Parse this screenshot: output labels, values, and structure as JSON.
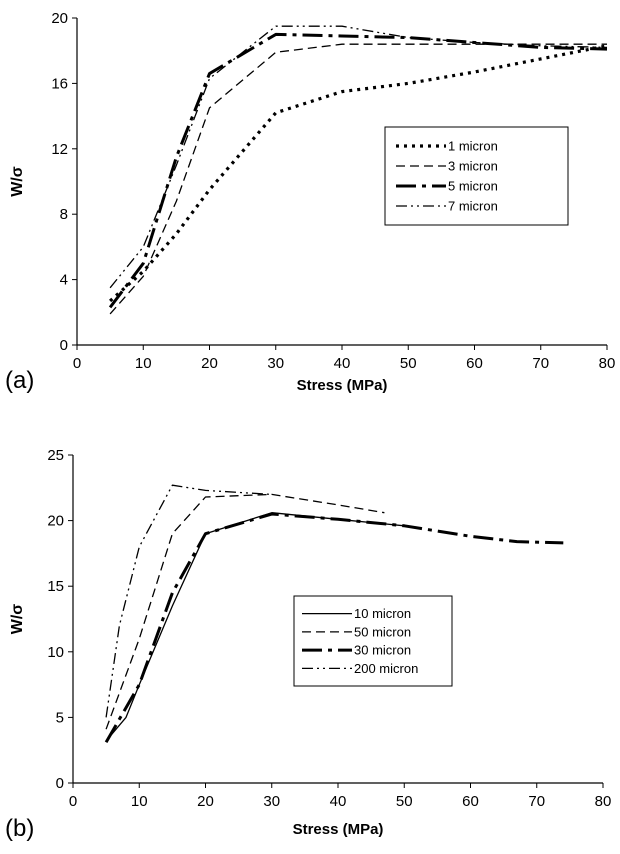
{
  "chart_data": [
    {
      "panel": "(a)",
      "type": "line",
      "xlabel": "Stress (MPa)",
      "ylabel": "W/σ",
      "xlim": [
        0,
        80
      ],
      "ylim": [
        0,
        20
      ],
      "xticks": [
        0,
        10,
        20,
        30,
        40,
        50,
        60,
        70,
        80
      ],
      "yticks": [
        0,
        4,
        8,
        12,
        16,
        20
      ],
      "grid": false,
      "legend_position": "right-middle",
      "series": [
        {
          "name": "1 micron",
          "style": "dotted-thick",
          "x": [
            5,
            10,
            15,
            20,
            30,
            40,
            50,
            60,
            70,
            80
          ],
          "y": [
            2.7,
            4.5,
            6.8,
            9.5,
            14.2,
            15.5,
            16.0,
            16.7,
            17.5,
            18.3
          ]
        },
        {
          "name": "3 micron",
          "style": "dashed-thin",
          "x": [
            5,
            10,
            15,
            20,
            30,
            40,
            50,
            60,
            70,
            80
          ],
          "y": [
            1.9,
            4.2,
            8.8,
            14.5,
            17.9,
            18.4,
            18.4,
            18.4,
            18.4,
            18.4
          ]
        },
        {
          "name": "5 micron",
          "style": "dashdot-thick",
          "x": [
            5,
            10,
            15,
            20,
            30,
            40,
            50,
            60,
            70,
            80
          ],
          "y": [
            2.3,
            5.0,
            11.5,
            16.6,
            19.0,
            18.9,
            18.8,
            18.5,
            18.2,
            18.1
          ]
        },
        {
          "name": "7 micron",
          "style": "dashdotdot-thin",
          "x": [
            5,
            10,
            15,
            20,
            30,
            40,
            50,
            60,
            70,
            80
          ],
          "y": [
            3.5,
            6.0,
            11.0,
            16.3,
            19.5,
            19.5,
            18.8,
            18.5,
            18.3,
            18.2
          ]
        }
      ]
    },
    {
      "panel": "(b)",
      "type": "line",
      "xlabel": "Stress (MPa)",
      "ylabel": "W/σ",
      "xlim": [
        0,
        80
      ],
      "ylim": [
        0,
        25
      ],
      "xticks": [
        0,
        10,
        20,
        30,
        40,
        50,
        60,
        70,
        80
      ],
      "yticks": [
        0,
        5,
        10,
        15,
        20,
        25
      ],
      "grid": false,
      "legend_position": "center",
      "series": [
        {
          "name": "10 micron",
          "style": "solid",
          "x": [
            5,
            8,
            10,
            15,
            20,
            30,
            40,
            50
          ],
          "y": [
            3.2,
            5.0,
            7.5,
            13.5,
            19.0,
            20.6,
            20.1,
            19.6
          ]
        },
        {
          "name": "50 micron",
          "style": "dashed-thin",
          "x": [
            5,
            10,
            15,
            20,
            30,
            40,
            47
          ],
          "y": [
            4.1,
            11.0,
            19.0,
            21.8,
            22.0,
            21.2,
            20.6
          ]
        },
        {
          "name": "30 micron",
          "style": "dashdot-thick",
          "x": [
            5,
            10,
            15,
            20,
            30,
            40,
            50,
            60,
            67,
            74
          ],
          "y": [
            3.1,
            7.5,
            14.5,
            19.0,
            20.5,
            20.1,
            19.6,
            18.8,
            18.4,
            18.3
          ]
        },
        {
          "name": "200 micron",
          "style": "dashdotdot-thin",
          "x": [
            5,
            7,
            10,
            15,
            20,
            30
          ],
          "y": [
            5.0,
            12.0,
            18.0,
            22.7,
            22.3,
            22.0
          ]
        }
      ]
    }
  ]
}
